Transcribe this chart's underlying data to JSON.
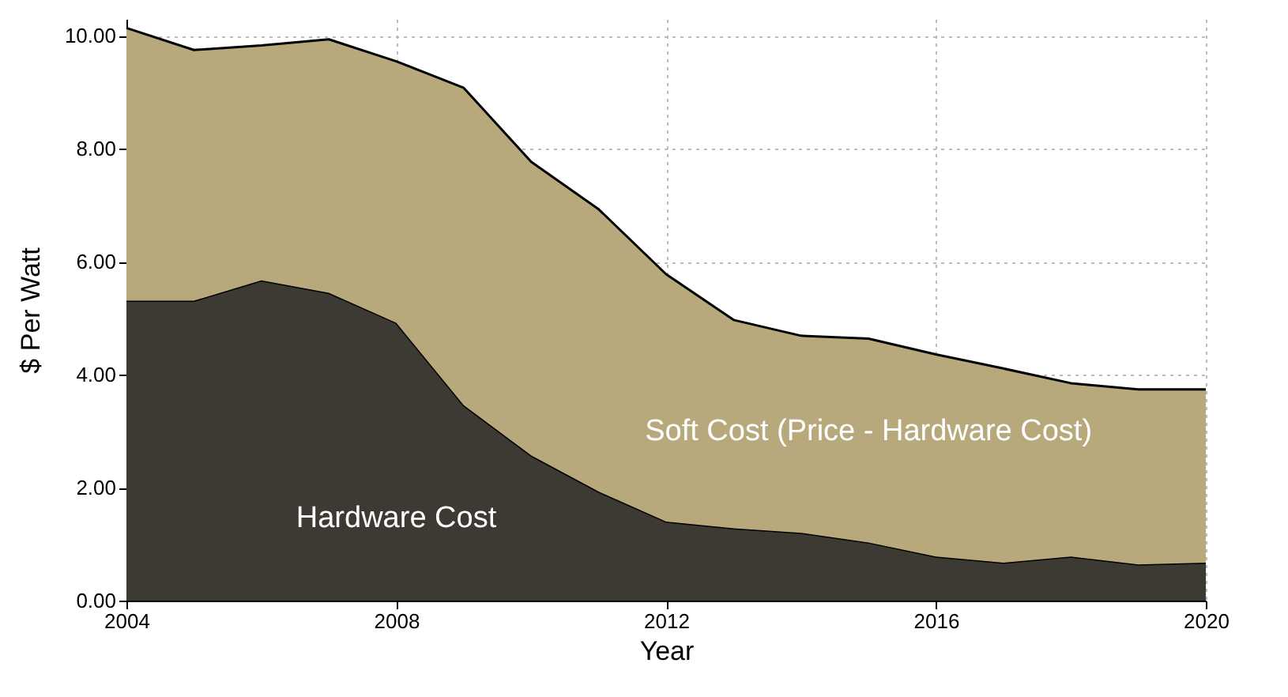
{
  "chart_data": {
    "type": "area",
    "stacked": true,
    "xlabel": "Year",
    "ylabel": "$ Per Watt",
    "x": [
      2004,
      2005,
      2006,
      2007,
      2008,
      2009,
      2010,
      2011,
      2012,
      2013,
      2014,
      2015,
      2016,
      2017,
      2018,
      2019,
      2020
    ],
    "series": [
      {
        "name": "Hardware Cost",
        "color": "#3d3a33",
        "values": [
          5.31,
          5.31,
          5.67,
          5.45,
          4.92,
          3.46,
          2.57,
          1.93,
          1.4,
          1.28,
          1.2,
          1.03,
          0.78,
          0.67,
          0.78,
          0.64,
          0.67
        ]
      },
      {
        "name": "Soft Cost (Price - Hardware Cost)",
        "color": "#b8a97c",
        "values": [
          4.83,
          4.44,
          4.16,
          4.49,
          4.63,
          5.62,
          5.2,
          5.0,
          4.38,
          3.69,
          3.49,
          3.61,
          3.58,
          3.44,
          3.07,
          3.1,
          3.07
        ]
      }
    ],
    "xlim": [
      2004,
      2020
    ],
    "xticks": [
      2004,
      2008,
      2012,
      2016,
      2020
    ],
    "ylim": [
      0,
      10.3
    ],
    "yticks": [
      {
        "value": 0,
        "label": "0.00"
      },
      {
        "value": 2,
        "label": "2.00"
      },
      {
        "value": 4,
        "label": "4.00"
      },
      {
        "value": 6,
        "label": "6.00"
      },
      {
        "value": 8,
        "label": "8.00"
      },
      {
        "value": 10,
        "label": "10.00"
      }
    ],
    "grid": true
  }
}
